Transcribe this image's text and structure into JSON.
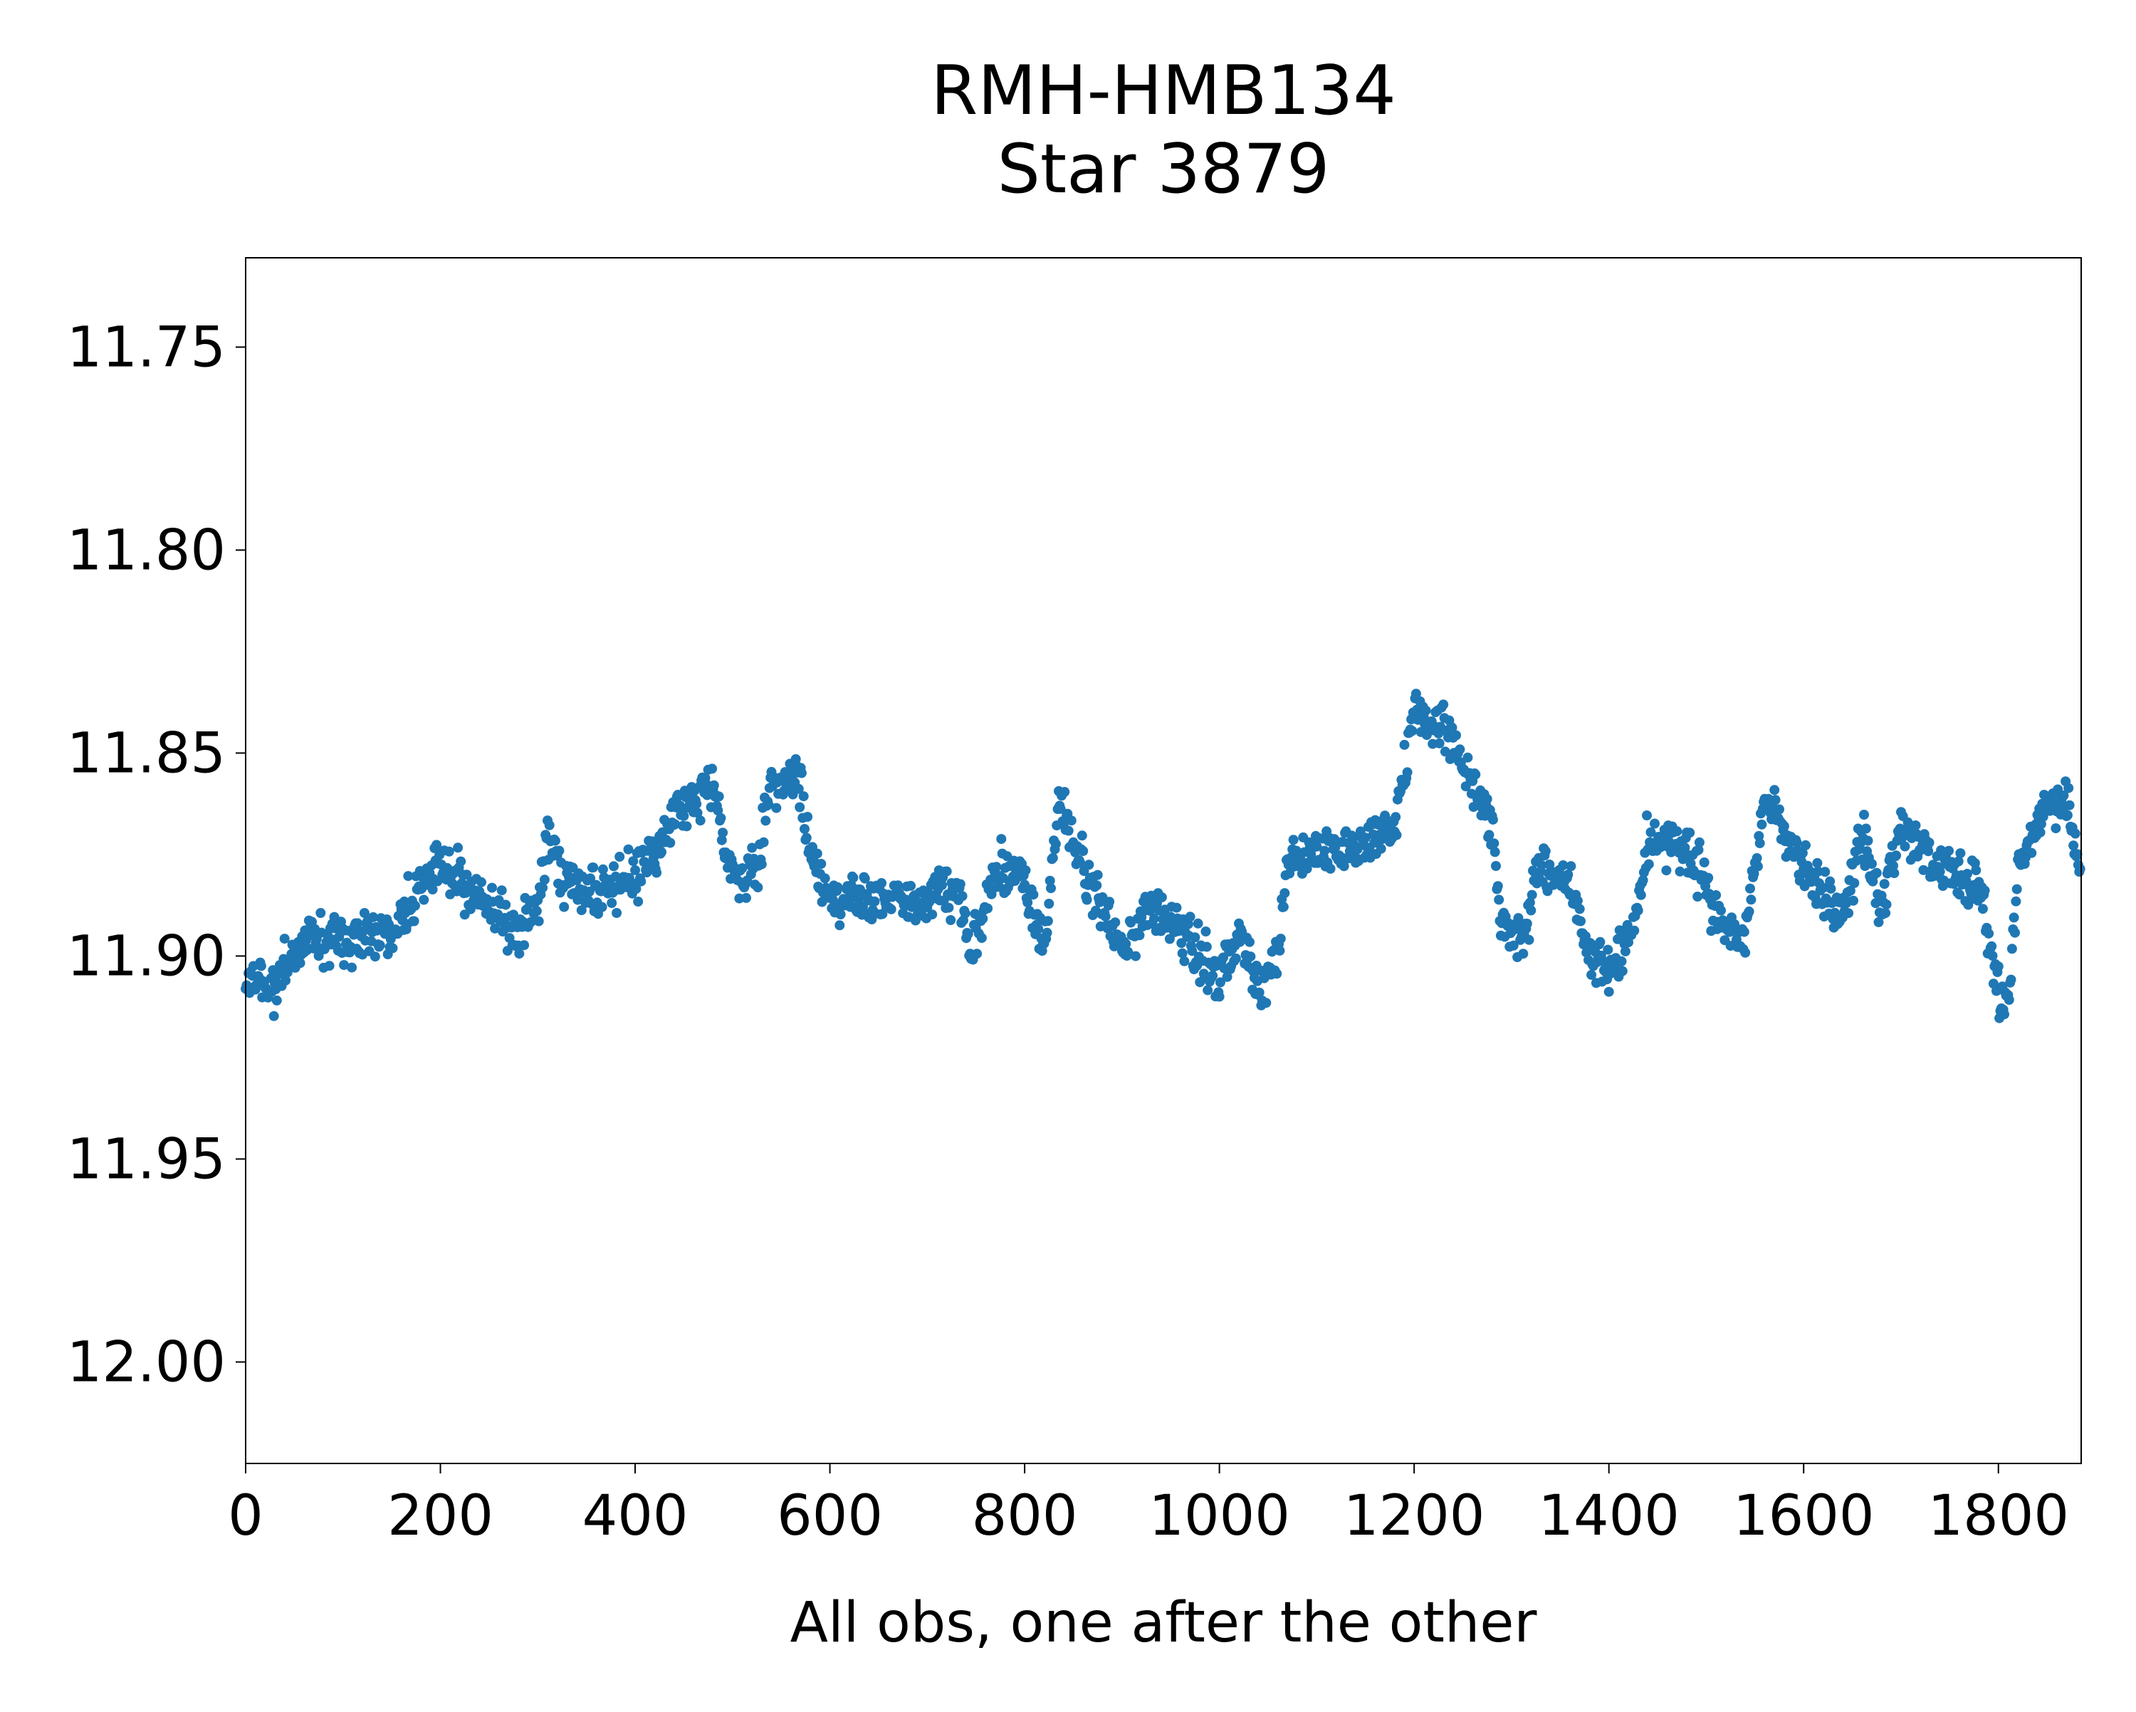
{
  "chart_data": {
    "type": "scatter",
    "title": [
      "RMH-HMB134",
      "Star 3879"
    ],
    "xlabel": "All obs, one after the other",
    "ylabel": "",
    "xlim": [
      0,
      1885
    ],
    "ylim": [
      12.025,
      11.728
    ],
    "y_inverted": true,
    "grid": false,
    "x_ticks": [
      0,
      200,
      400,
      600,
      800,
      1000,
      1200,
      1400,
      1600,
      1800
    ],
    "x_tick_labels": [
      "0",
      "200",
      "400",
      "600",
      "800",
      "1000",
      "1200",
      "1400",
      "1600",
      "1800"
    ],
    "y_ticks": [
      11.75,
      11.8,
      11.85,
      11.9,
      11.95,
      12.0
    ],
    "y_tick_labels": [
      "11.75",
      "11.80",
      "11.85",
      "11.90",
      "11.95",
      "12.00"
    ],
    "marker_color": "#1f77b4",
    "series": [
      {
        "n_points": 1885,
        "trend_knots": [
          [
            0,
            11.905
          ],
          [
            30,
            11.908
          ],
          [
            60,
            11.895
          ],
          [
            100,
            11.897
          ],
          [
            150,
            11.893
          ],
          [
            200,
            11.878
          ],
          [
            240,
            11.885
          ],
          [
            280,
            11.895
          ],
          [
            300,
            11.887
          ],
          [
            310,
            11.872
          ],
          [
            330,
            11.882
          ],
          [
            380,
            11.884
          ],
          [
            420,
            11.875
          ],
          [
            450,
            11.862
          ],
          [
            480,
            11.858
          ],
          [
            500,
            11.882
          ],
          [
            525,
            11.878
          ],
          [
            540,
            11.857
          ],
          [
            570,
            11.857
          ],
          [
            580,
            11.875
          ],
          [
            600,
            11.885
          ],
          [
            650,
            11.885
          ],
          [
            700,
            11.886
          ],
          [
            730,
            11.883
          ],
          [
            745,
            11.898
          ],
          [
            760,
            11.888
          ],
          [
            775,
            11.878
          ],
          [
            800,
            11.882
          ],
          [
            820,
            11.898
          ],
          [
            835,
            11.862
          ],
          [
            860,
            11.878
          ],
          [
            880,
            11.888
          ],
          [
            900,
            11.898
          ],
          [
            930,
            11.888
          ],
          [
            960,
            11.895
          ],
          [
            1000,
            11.905
          ],
          [
            1020,
            11.895
          ],
          [
            1040,
            11.908
          ],
          [
            1060,
            11.9
          ],
          [
            1070,
            11.878
          ],
          [
            1100,
            11.875
          ],
          [
            1150,
            11.872
          ],
          [
            1180,
            11.868
          ],
          [
            1200,
            11.84
          ],
          [
            1230,
            11.843
          ],
          [
            1260,
            11.858
          ],
          [
            1280,
            11.868
          ],
          [
            1290,
            11.893
          ],
          [
            1310,
            11.895
          ],
          [
            1330,
            11.878
          ],
          [
            1360,
            11.882
          ],
          [
            1380,
            11.902
          ],
          [
            1400,
            11.903
          ],
          [
            1420,
            11.898
          ],
          [
            1440,
            11.872
          ],
          [
            1460,
            11.87
          ],
          [
            1490,
            11.878
          ],
          [
            1520,
            11.895
          ],
          [
            1540,
            11.893
          ],
          [
            1560,
            11.862
          ],
          [
            1600,
            11.877
          ],
          [
            1640,
            11.893
          ],
          [
            1660,
            11.87
          ],
          [
            1680,
            11.888
          ],
          [
            1700,
            11.87
          ],
          [
            1740,
            11.878
          ],
          [
            1780,
            11.883
          ],
          [
            1800,
            11.91
          ],
          [
            1810,
            11.912
          ],
          [
            1820,
            11.878
          ],
          [
            1850,
            11.862
          ],
          [
            1870,
            11.86
          ],
          [
            1885,
            11.883
          ]
        ],
        "noise_amplitude": 0.006
      }
    ]
  }
}
